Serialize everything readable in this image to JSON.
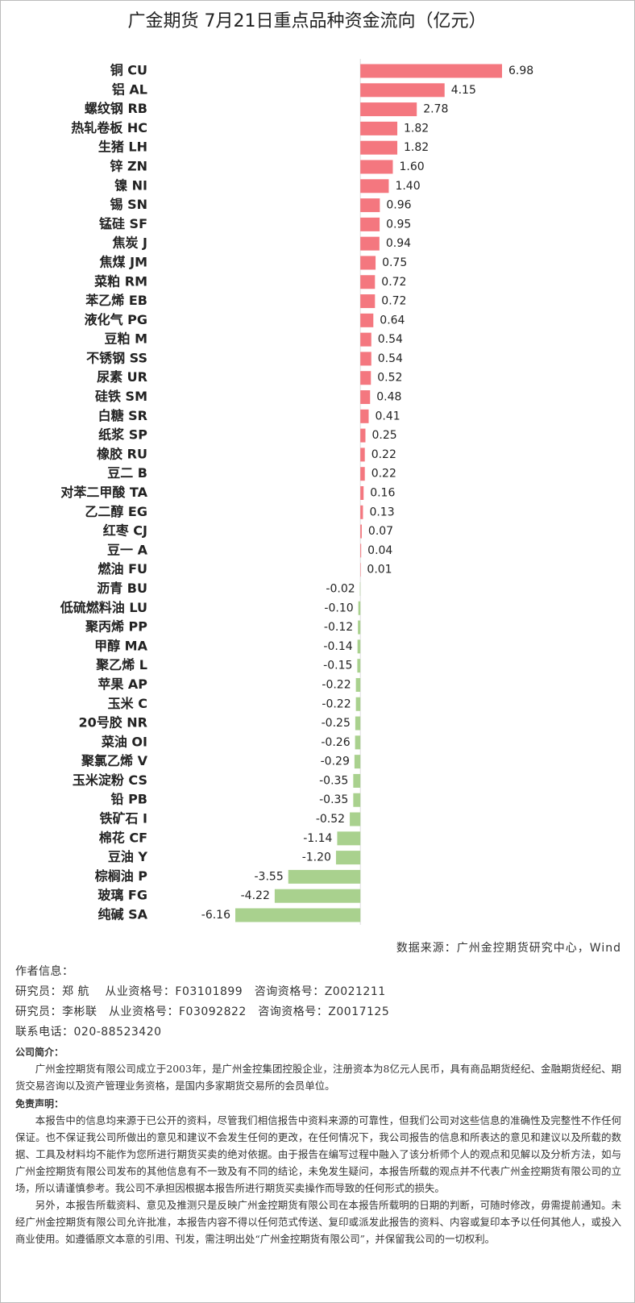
{
  "chart_data": {
    "type": "bar",
    "orientation": "horizontal",
    "title": "广金期货 7月21日重点品种资金流向（亿元）",
    "categories": [
      "铜 CU",
      "铝 AL",
      "螺纹钢 RB",
      "热轧卷板 HC",
      "生猪 LH",
      "锌 ZN",
      "镍 NI",
      "锡 SN",
      "锰硅 SF",
      "焦炭 J",
      "焦煤 JM",
      "菜粕 RM",
      "苯乙烯 EB",
      "液化气 PG",
      "豆粕 M",
      "不锈钢 SS",
      "尿素 UR",
      "硅铁 SM",
      "白糖 SR",
      "纸浆 SP",
      "橡胶 RU",
      "豆二 B",
      "对苯二甲酸 TA",
      "乙二醇 EG",
      "红枣 CJ",
      "豆一 A",
      "燃油 FU",
      "沥青 BU",
      "低硫燃料油 LU",
      "聚丙烯 PP",
      "甲醇 MA",
      "聚乙烯 L",
      "苹果 AP",
      "玉米 C",
      "20号胶 NR",
      "菜油 OI",
      "聚氯乙烯 V",
      "玉米淀粉 CS",
      "铅 PB",
      "铁矿石 I",
      "棉花 CF",
      "豆油 Y",
      "棕榈油 P",
      "玻璃 FG",
      "纯碱 SA"
    ],
    "values": [
      6.98,
      4.15,
      2.78,
      1.82,
      1.82,
      1.6,
      1.4,
      0.96,
      0.95,
      0.94,
      0.75,
      0.72,
      0.72,
      0.64,
      0.54,
      0.54,
      0.52,
      0.48,
      0.41,
      0.25,
      0.22,
      0.22,
      0.16,
      0.13,
      0.07,
      0.04,
      0.01,
      -0.02,
      -0.1,
      -0.12,
      -0.14,
      -0.15,
      -0.22,
      -0.22,
      -0.25,
      -0.26,
      -0.29,
      -0.35,
      -0.35,
      -0.52,
      -1.14,
      -1.2,
      -3.55,
      -4.22,
      -6.16
    ],
    "value_labels": [
      "6.98",
      "4.15",
      "2.78",
      "1.82",
      "1.82",
      "1.60",
      "1.40",
      "0.96",
      "0.95",
      "0.94",
      "0.75",
      "0.72",
      "0.72",
      "0.64",
      "0.54",
      "0.54",
      "0.52",
      "0.48",
      "0.41",
      "0.25",
      "0.22",
      "0.22",
      "0.16",
      "0.13",
      "0.07",
      "0.04",
      "0.01",
      "-0.02",
      "-0.10",
      "-0.12",
      "-0.14",
      "-0.15",
      "-0.22",
      "-0.22",
      "-0.25",
      "-0.26",
      "-0.29",
      "-0.35",
      "-0.35",
      "-0.52",
      "-1.14",
      "-1.20",
      "-3.55",
      "-4.22",
      "-6.16"
    ],
    "positive_color": "#f4777f",
    "negative_color": "#a9d18e"
  },
  "footer": {
    "source": "数据来源：广州金控期货研究中心，Wind",
    "author_heading": "作者信息：",
    "authors": [
      "研究员：郑 航　 从业资格号：F03101899　咨询资格号：Z0021211",
      "研究员：李彬联　从业资格号：F03092822　咨询资格号：Z0017125"
    ],
    "contact": "联系电话：020-88523420",
    "company_heading": "公司简介：",
    "company_text": "广州金控期货有限公司成立于2003年，是广州金控集团控股企业，注册资本为8亿元人民币，具有商品期货经纪、金融期货经纪、期货交易咨询以及资产管理业务资格，是国内多家期货交易所的会员单位。",
    "disclaimer_heading": "免责声明：",
    "disclaimer": [
      "本报告中的信息均来源于已公开的资料，尽管我们相信报告中资料来源的可靠性，但我们公司对这些信息的准确性及完整性不作任何保证。也不保证我公司所做出的意见和建议不会发生任何的更改，在任何情况下，我公司报告的信息和所表达的意见和建议以及所载的数据、工具及材料均不能作为您所进行期货买卖的绝对依据。由于报告在编写过程中融入了该分析师个人的观点和见解以及分析方法，如与广州金控期货有限公司发布的其他信息有不一致及有不同的结论，未免发生疑问，本报告所载的观点并不代表广州金控期货有限公司的立场，所以请谨慎参考。我公司不承担因根据本报告所进行期货买卖操作而导致的任何形式的损失。",
      "另外，本报告所载资料、意见及推测只是反映广州金控期货有限公司在本报告所载明的日期的判断，可随时修改，毋需提前通知。未经广州金控期货有限公司允许批准，本报告内容不得以任何范式传送、复印或派发此报告的资料、内容或复印本予以任何其他人，或投入商业使用。如遵循原文本意的引用、刊发，需注明出处“广州金控期货有限公司”，并保留我公司的一切权利。"
    ]
  }
}
